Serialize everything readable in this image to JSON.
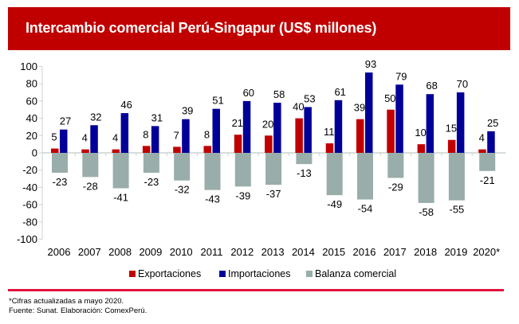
{
  "header": {
    "title": "Intercambio comercial Perú-Singapur (US$ millones)"
  },
  "colors": {
    "title_bg": "#C00000",
    "exports": "#C00000",
    "imports": "#000099",
    "balance": "#99ADAA",
    "divider": "#E0143C",
    "axis": "#C8D4CF"
  },
  "chart_data": {
    "type": "bar",
    "title": "Intercambio comercial Perú-Singapur (US$ millones)",
    "xlabel": "",
    "ylabel": "",
    "ylim": [
      -100,
      100
    ],
    "yticks": [
      100,
      80,
      60,
      40,
      20,
      0,
      -20,
      -40,
      -60,
      -80,
      -100
    ],
    "grid": false,
    "legend_position": "bottom",
    "categories": [
      "2006",
      "2007",
      "2008",
      "2009",
      "2010",
      "2011",
      "2012",
      "2013",
      "2014",
      "2015",
      "2016",
      "2017",
      "2018",
      "2019",
      "2020*"
    ],
    "series": [
      {
        "name": "Exportaciones",
        "key": "exports",
        "values": [
          5,
          4,
          4,
          8,
          7,
          8,
          21,
          20,
          40,
          11,
          39,
          50,
          10,
          15,
          4
        ]
      },
      {
        "name": "Importaciones",
        "key": "imports",
        "values": [
          27,
          32,
          46,
          31,
          39,
          51,
          60,
          58,
          53,
          61,
          93,
          79,
          68,
          70,
          25
        ]
      },
      {
        "name": "Balanza comercial",
        "key": "balance",
        "values": [
          -23,
          -28,
          -41,
          -23,
          -32,
          -43,
          -39,
          -37,
          -13,
          -49,
          -54,
          -29,
          -58,
          -55,
          -21
        ]
      }
    ]
  },
  "legend": [
    {
      "label": "Exportaciones",
      "key": "exports"
    },
    {
      "label": "Importaciones",
      "key": "imports"
    },
    {
      "label": "Balanza comercial",
      "key": "balance"
    }
  ],
  "footer": {
    "note": "*Cifras actualizadas a mayo 2020.",
    "source": "Fuente: Sunat. Elaboración: ComexPerú."
  }
}
